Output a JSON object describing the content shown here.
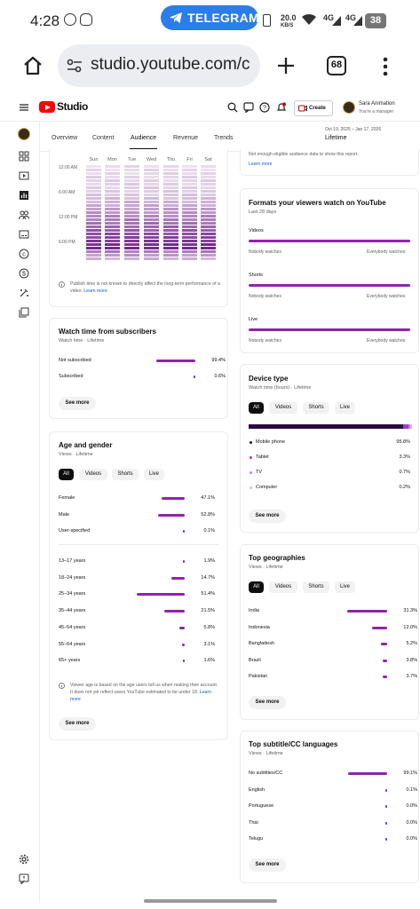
{
  "status_bar": {
    "time": "4:28",
    "telegram_pill": "TELEGRAM",
    "net_speed": "20.0",
    "net_unit": "KB/S",
    "sig1": "4G",
    "sig2": "4G",
    "battery": "38"
  },
  "browser": {
    "url": "studio.youtube.com/c",
    "tab_count": "68"
  },
  "header": {
    "brand": "Studio",
    "create_label": "Create",
    "account_name": "Sara Animation",
    "account_role": "You're a manager"
  },
  "subnav": {
    "tabs": [
      "Overview",
      "Content",
      "Audience",
      "Revenue",
      "Trends"
    ],
    "active_tab": "Audience",
    "date_range": "Oct 19, 2025 – Jan 17, 2026",
    "period": "Lifetime"
  },
  "heatmap": {
    "days": [
      "Sun",
      "Mon",
      "Tue",
      "Wed",
      "Thu",
      "Fri",
      "Sat"
    ],
    "times": [
      "12:00 AM",
      "6:00 AM",
      "12:00 PM",
      "6:00 PM"
    ],
    "note": "Publish time is not known to directly affect the long-term performance of a video.",
    "note_link": "Learn more"
  },
  "returning": {
    "text": "Not enough eligible audience data to show this report.",
    "link": "Learn more"
  },
  "subscribers": {
    "title": "Watch time from subscribers",
    "subtitle": "Watch time · Lifetime",
    "rows": [
      {
        "label": "Not subscribed",
        "value": "99.4%",
        "pct": 99.4
      },
      {
        "label": "Subscribed",
        "value": "0.6%",
        "pct": 0.6
      }
    ],
    "see_more": "See more"
  },
  "formats": {
    "title": "Formats your viewers watch on YouTube",
    "subtitle": "Last 28 days",
    "groups": [
      "Videos",
      "Shorts",
      "Live"
    ],
    "left_label": "Nobody watches",
    "right_label": "Everybody watches"
  },
  "device": {
    "title": "Device type",
    "subtitle": "Watch time (hours) · Lifetime",
    "chips": [
      "All",
      "Videos",
      "Shorts",
      "Live"
    ],
    "rows": [
      {
        "label": "Mobile phone",
        "value": "95.8%",
        "pct": 95.8,
        "color": "#2d0a3e"
      },
      {
        "label": "Tablet",
        "value": "3.3%",
        "pct": 3.3,
        "color": "#9c3ec2"
      },
      {
        "label": "TV",
        "value": "0.7%",
        "pct": 0.7,
        "color": "#c77be0"
      },
      {
        "label": "Computer",
        "value": "0.2%",
        "pct": 0.2,
        "color": "#e3b6f0"
      }
    ],
    "see_more": "See more"
  },
  "age_gender": {
    "title": "Age and gender",
    "subtitle": "Views · Lifetime",
    "chips": [
      "All",
      "Videos",
      "Shorts",
      "Live"
    ],
    "gender": [
      {
        "label": "Female",
        "value": "47.1%",
        "pct": 47.1
      },
      {
        "label": "Male",
        "value": "52.8%",
        "pct": 52.8
      },
      {
        "label": "User-specified",
        "value": "0.1%",
        "pct": 0.1
      }
    ],
    "ages": [
      {
        "label": "13–17 years",
        "value": "1.9%",
        "pct": 1.9
      },
      {
        "label": "18–24 years",
        "value": "14.7%",
        "pct": 14.7
      },
      {
        "label": "25–34 years",
        "value": "51.4%",
        "pct": 51.4
      },
      {
        "label": "35–44 years",
        "value": "21.5%",
        "pct": 21.5
      },
      {
        "label": "45–54 years",
        "value": "5.8%",
        "pct": 5.8
      },
      {
        "label": "55–64 years",
        "value": "3.1%",
        "pct": 3.1
      },
      {
        "label": "65+ years",
        "value": "1.6%",
        "pct": 1.6
      }
    ],
    "note": "Viewer age is based on the age users tell us when making their account. It does not yet reflect users YouTube estimated to be under 18.",
    "note_link": "Learn more",
    "see_more": "See more"
  },
  "geo": {
    "title": "Top geographies",
    "subtitle": "Views · Lifetime",
    "chips": [
      "All",
      "Videos",
      "Shorts",
      "Live"
    ],
    "rows": [
      {
        "label": "India",
        "value": "31.3%",
        "pct": 31.3
      },
      {
        "label": "Indonesia",
        "value": "12.0%",
        "pct": 12.0
      },
      {
        "label": "Bangladesh",
        "value": "5.2%",
        "pct": 5.2
      },
      {
        "label": "Brazil",
        "value": "3.8%",
        "pct": 3.8
      },
      {
        "label": "Pakistan",
        "value": "3.7%",
        "pct": 3.7
      }
    ],
    "see_more": "See more"
  },
  "subtitles": {
    "title": "Top subtitle/CC languages",
    "subtitle": "Views · Lifetime",
    "rows": [
      {
        "label": "No subtitles/CC",
        "value": "99.1%",
        "pct": 99.1
      },
      {
        "label": "English",
        "value": "0.1%",
        "pct": 0.1
      },
      {
        "label": "Portuguese",
        "value": "0.0%",
        "pct": 0.0
      },
      {
        "label": "Thai",
        "value": "0.0%",
        "pct": 0.0
      },
      {
        "label": "Telugu",
        "value": "0.0%",
        "pct": 0.0
      }
    ],
    "see_more": "See more"
  },
  "colors": {
    "accent": "#8e24aa",
    "brand": "#ff0000",
    "telegram": "#2b7de9"
  }
}
